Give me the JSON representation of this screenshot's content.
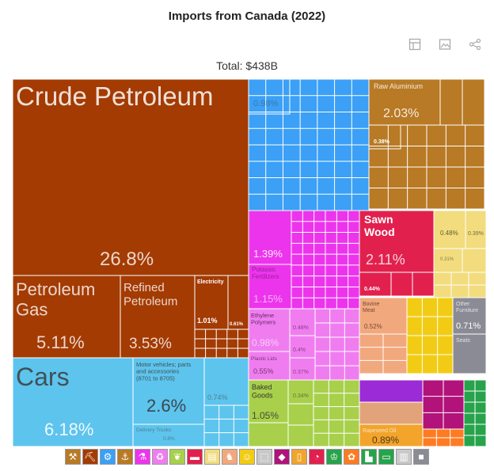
{
  "title": "Imports from Canada (2022)",
  "total_label": "Total: $438B",
  "toolbar": {
    "icons": [
      "table-icon",
      "image-icon",
      "share-icon"
    ]
  },
  "colors": {
    "mineral": "#a33b03",
    "machinery": "#3ba0f6",
    "metals": "#b87a25",
    "chemicals": "#ed34ed",
    "plastics": "#f07df0",
    "wood": "#e2204e",
    "paper": "#f2dc7d",
    "transport": "#5dc4ed",
    "food": "#a8d04b",
    "animal": "#f2a87d",
    "instruments": "#f2cc14",
    "misc": "#8b8b95",
    "stone": "#b1137a",
    "vegetable": "#f2a42b",
    "textiles": "#27a34b",
    "footwear": "#ff7b22",
    "fill_gray": "#c9c9c9"
  },
  "legend": [
    {
      "icon": "hammer-icon",
      "color": "#b87a25"
    },
    {
      "icon": "pickaxe-icon",
      "color": "#a33b03"
    },
    {
      "icon": "gear-icon",
      "color": "#3ba0f6"
    },
    {
      "icon": "anvil-icon",
      "color": "#b87a25"
    },
    {
      "icon": "flask-icon",
      "color": "#ed34ed"
    },
    {
      "icon": "recycle-icon",
      "color": "#f07df0"
    },
    {
      "icon": "leaf-icon",
      "color": "#a8d04b"
    },
    {
      "icon": "car-icon",
      "color": "#e2204e"
    },
    {
      "icon": "paper-icon",
      "color": "#f2dc7d"
    },
    {
      "icon": "cow-icon",
      "color": "#f2a87d"
    },
    {
      "icon": "smile-icon",
      "color": "#f2cc14"
    },
    {
      "icon": "box-icon",
      "color": "#c9c9c9"
    },
    {
      "icon": "gem-icon",
      "color": "#b1137a"
    },
    {
      "icon": "bottle-icon",
      "color": "#f2a42b"
    },
    {
      "icon": "gauge-icon",
      "color": "#e2204e"
    },
    {
      "icon": "shirt-icon",
      "color": "#27a34b"
    },
    {
      "icon": "wheat-icon",
      "color": "#ff7b22"
    },
    {
      "icon": "boot-icon",
      "color": "#27a34b"
    },
    {
      "icon": "cars-icon",
      "color": "#27a34b"
    },
    {
      "icon": "crate-icon",
      "color": "#c9c9c9"
    },
    {
      "icon": "bread-icon",
      "color": "#8b8b95"
    }
  ],
  "chart_data": {
    "type": "treemap",
    "title": "Imports from Canada (2022)",
    "total": "$438B",
    "labeled_tiles": [
      {
        "name": "Crude Petroleum",
        "share_label": "26.8%",
        "value": 26.8,
        "color": "#a33b03"
      },
      {
        "name": "Petroleum Gas",
        "share_label": "5.11%",
        "value": 5.11,
        "color": "#a33b03"
      },
      {
        "name": "Refined Petroleum",
        "share_label": "3.53%",
        "value": 3.53,
        "color": "#a33b03"
      },
      {
        "name": "Electricity",
        "share_label": "1.01%",
        "value": 1.01,
        "color": "#a33b03"
      },
      {
        "name": "",
        "share_label": "0.61%",
        "value": 0.61,
        "color": "#a33b03"
      },
      {
        "name": "Cars",
        "share_label": "6.18%",
        "value": 6.18,
        "color": "#5dc4ed"
      },
      {
        "name": "Motor vehicles; parts and accessories (8701 to 8705)",
        "share_label": "2.6%",
        "value": 2.6,
        "color": "#5dc4ed"
      },
      {
        "name": "",
        "share_label": "0.74%",
        "value": 0.74,
        "color": "#5dc4ed"
      },
      {
        "name": "Delivery Trucks",
        "share_label": "0.8%",
        "value": 0.8,
        "color": "#5dc4ed"
      },
      {
        "name": "",
        "share_label": "0.98%",
        "value": 0.98,
        "color": "#3ba0f6"
      },
      {
        "name": "Raw Aluminium",
        "share_label": "2.03%",
        "value": 2.03,
        "color": "#b87a25"
      },
      {
        "name": "",
        "share_label": "0.38%",
        "value": 0.38,
        "color": "#b87a25"
      },
      {
        "name": "",
        "share_label": "1.39%",
        "value": 1.39,
        "color": "#ed34ed"
      },
      {
        "name": "Potassic Fertilizers",
        "share_label": "1.15%",
        "value": 1.15,
        "color": "#ed34ed"
      },
      {
        "name": "Ethylene Polymers",
        "share_label": "0.98%",
        "value": 0.98,
        "color": "#f07df0"
      },
      {
        "name": "",
        "share_label": "0.48%",
        "value": 0.48,
        "color": "#f07df0"
      },
      {
        "name": "",
        "share_label": "0.4%",
        "value": 0.4,
        "color": "#f07df0"
      },
      {
        "name": "Plastic Lids",
        "share_label": "0.55%",
        "value": 0.55,
        "color": "#f07df0"
      },
      {
        "name": "",
        "share_label": "0.37%",
        "value": 0.37,
        "color": "#f07df0"
      },
      {
        "name": "Sawn Wood",
        "share_label": "2.11%",
        "value": 2.11,
        "color": "#e2204e"
      },
      {
        "name": "",
        "share_label": "0.44%",
        "value": 0.44,
        "color": "#e2204e"
      },
      {
        "name": "",
        "share_label": "0.48%",
        "value": 0.48,
        "color": "#f2dc7d"
      },
      {
        "name": "",
        "share_label": "0.39%",
        "value": 0.39,
        "color": "#f2dc7d"
      },
      {
        "name": "",
        "share_label": "0.31%",
        "value": 0.31,
        "color": "#f2dc7d"
      },
      {
        "name": "Bovine Meat",
        "share_label": "0.52%",
        "value": 0.52,
        "color": "#f2a87d"
      },
      {
        "name": "Other Furniture",
        "share_label": "0.71%",
        "value": 0.71,
        "color": "#8b8b95"
      },
      {
        "name": "Seats",
        "share_label": "",
        "value": null,
        "color": "#8b8b95"
      },
      {
        "name": "Baked Goods",
        "share_label": "1.05%",
        "value": 1.05,
        "color": "#a8d04b"
      },
      {
        "name": "",
        "share_label": "0.34%",
        "value": 0.34,
        "color": "#a8d04b"
      },
      {
        "name": "Rapeseed Oil",
        "share_label": "0.89%",
        "value": 0.89,
        "color": "#f2a42b"
      }
    ]
  }
}
